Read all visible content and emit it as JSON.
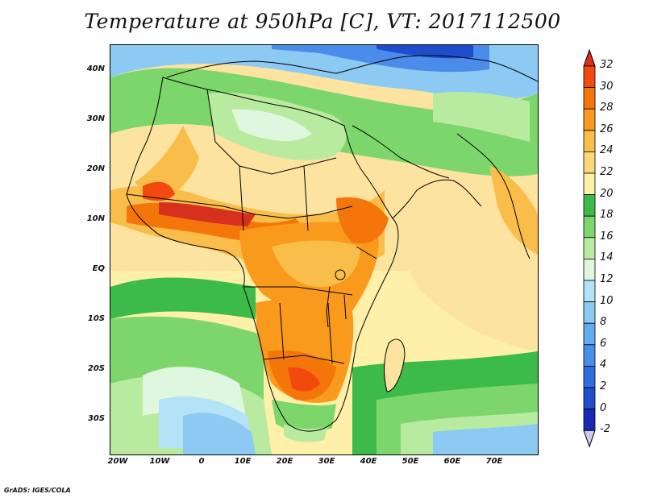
{
  "title": "Temperature at 950hPa [C], VT: 2017112500",
  "credit": "GrADS: IGES/COLA",
  "map": {
    "lat_labels": [
      "40N",
      "30N",
      "20N",
      "10N",
      "EQ",
      "10S",
      "20S",
      "30S"
    ],
    "lon_labels": [
      "20W",
      "10W",
      "0",
      "10E",
      "20E",
      "30E",
      "40E",
      "50E",
      "60E",
      "70E"
    ]
  },
  "colorbar": {
    "labels": [
      "32",
      "30",
      "28",
      "26",
      "24",
      "22",
      "20",
      "18",
      "16",
      "14",
      "12",
      "10",
      "8",
      "6",
      "4",
      "2",
      "0",
      "-2"
    ],
    "colors": {
      "above_32": "#d7301f",
      "30_32": "#f24a0e",
      "28_30": "#f4760a",
      "26_28": "#f99a1c",
      "24_26": "#f9bd4a",
      "22_24": "#fcd77a",
      "20_22": "#fef0a8",
      "18_20": "#3cbb4a",
      "16_18": "#7dd66c",
      "14_16": "#b8eba0",
      "12_14": "#e0f7df",
      "10_12": "#b4e3f7",
      "8_10": "#8ccaf3",
      "6_8": "#62acef",
      "4_6": "#4a8cea",
      "2_4": "#2f6de0",
      "0_2": "#1e4dcc",
      "-2_0": "#1929b5",
      "below_-2": "#d0c8f0"
    }
  },
  "colors": {
    "ocean_warm": "#fef0a8",
    "land_hot": "#f4760a",
    "cool_green": "#7dd66c",
    "cold_blue": "#4a8cea"
  }
}
